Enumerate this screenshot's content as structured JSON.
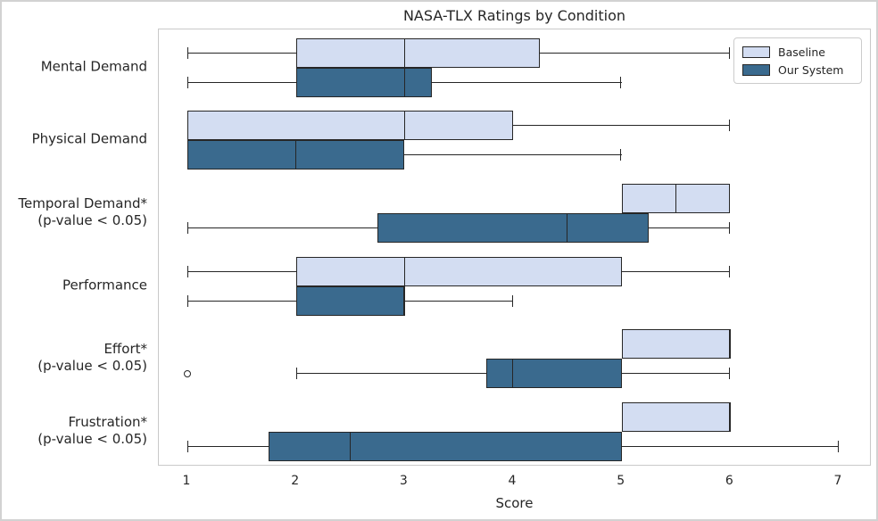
{
  "figure": {
    "title": "NASA-TLX Ratings by Condition",
    "xlabel": "Score"
  },
  "legend": {
    "items": [
      {
        "label": "Baseline",
        "color": "#d3ddf2"
      },
      {
        "label": "Our System",
        "color": "#3a6a8e"
      }
    ]
  },
  "colors": {
    "baseline_fill": "#d3ddf2",
    "our_system_fill": "#3a6a8e",
    "edge": "#262626",
    "spine": "#c9c9c9"
  },
  "chart_data": {
    "type": "boxplot",
    "orientation": "horizontal",
    "title": "NASA-TLX Ratings by Condition",
    "xlabel": "Score",
    "xticks": [
      1,
      2,
      3,
      4,
      5,
      6,
      7
    ],
    "xlim": [
      0.74,
      7.3
    ],
    "grid": false,
    "legend_position": "upper right",
    "categories": [
      {
        "label": "Mental Demand",
        "sublabel": ""
      },
      {
        "label": "Physical Demand",
        "sublabel": ""
      },
      {
        "label": "Temporal Demand*",
        "sublabel": "(p-value < 0.05)"
      },
      {
        "label": "Performance",
        "sublabel": ""
      },
      {
        "label": "Effort*",
        "sublabel": "(p-value < 0.05)"
      },
      {
        "label": "Frustration*",
        "sublabel": "(p-value < 0.05)"
      }
    ],
    "series": [
      {
        "name": "Baseline",
        "fill_color": "#d3ddf2",
        "edge_color": "#262626",
        "boxes": [
          {
            "category": "Mental Demand",
            "whisker_low": 1,
            "q1": 2,
            "median": 3,
            "q3": 4.25,
            "whisker_high": 6,
            "outliers": []
          },
          {
            "category": "Physical Demand",
            "whisker_low": 1,
            "q1": 1,
            "median": 3,
            "q3": 4,
            "whisker_high": 6,
            "outliers": []
          },
          {
            "category": "Temporal Demand*",
            "whisker_low": 5,
            "q1": 5,
            "median": 5.5,
            "q3": 6,
            "whisker_high": 6,
            "outliers": []
          },
          {
            "category": "Performance",
            "whisker_low": 1,
            "q1": 2,
            "median": 3,
            "q3": 5,
            "whisker_high": 6,
            "outliers": []
          },
          {
            "category": "Effort*",
            "whisker_low": 5,
            "q1": 5,
            "median": 6,
            "q3": 6,
            "whisker_high": 6,
            "outliers": []
          },
          {
            "category": "Frustration*",
            "whisker_low": 5,
            "q1": 5,
            "median": 6,
            "q3": 6,
            "whisker_high": 6,
            "outliers": []
          }
        ]
      },
      {
        "name": "Our System",
        "fill_color": "#3a6a8e",
        "edge_color": "#262626",
        "boxes": [
          {
            "category": "Mental Demand",
            "whisker_low": 1,
            "q1": 2,
            "median": 3,
            "q3": 3.25,
            "whisker_high": 5,
            "outliers": []
          },
          {
            "category": "Physical Demand",
            "whisker_low": 1,
            "q1": 1,
            "median": 2,
            "q3": 3,
            "whisker_high": 5,
            "outliers": []
          },
          {
            "category": "Temporal Demand*",
            "whisker_low": 1,
            "q1": 2.75,
            "median": 4.5,
            "q3": 5.25,
            "whisker_high": 6,
            "outliers": []
          },
          {
            "category": "Performance",
            "whisker_low": 1,
            "q1": 2,
            "median": 3,
            "q3": 3,
            "whisker_high": 4,
            "outliers": []
          },
          {
            "category": "Effort*",
            "whisker_low": 2,
            "q1": 3.75,
            "median": 4,
            "q3": 5,
            "whisker_high": 6,
            "outliers": [
              1
            ]
          },
          {
            "category": "Frustration*",
            "whisker_low": 1,
            "q1": 1.75,
            "median": 2.5,
            "q3": 5,
            "whisker_high": 7,
            "outliers": []
          }
        ]
      }
    ]
  }
}
